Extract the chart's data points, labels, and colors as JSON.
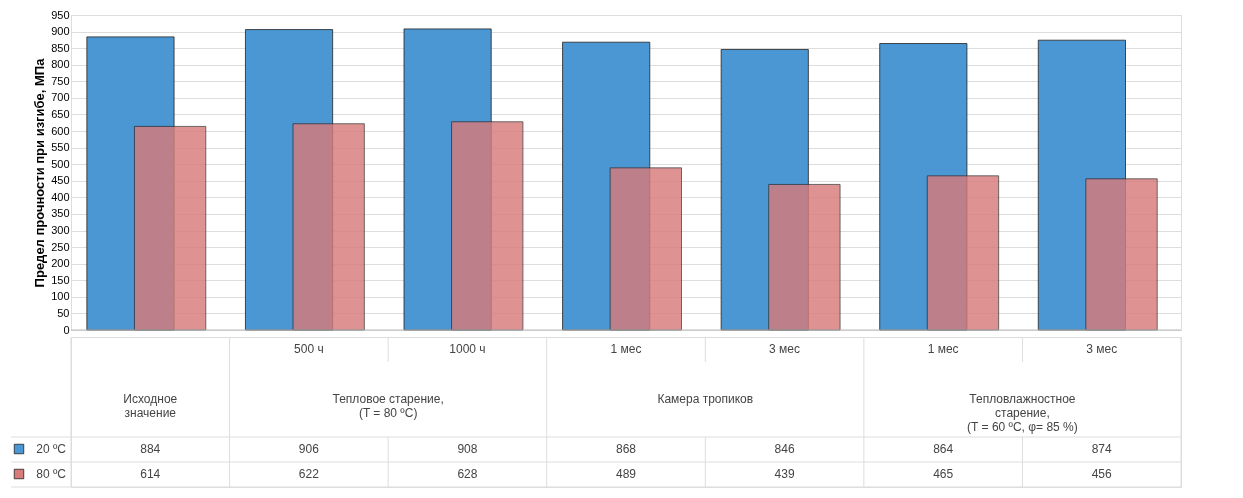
{
  "chart_data": {
    "type": "bar",
    "ylabel": "Предел прочности при изгибе, МПа",
    "categories": [
      null,
      "500 ч",
      "1000 ч",
      "1 мес",
      "3 мес",
      "1 мес",
      "3 мес"
    ],
    "series": [
      {
        "name": "20 ºC",
        "color": "#4a97d3",
        "values": [
          884,
          906,
          908,
          868,
          846,
          864,
          874
        ]
      },
      {
        "name": "80 ºC",
        "color": "#d77b7b",
        "values": [
          614,
          622,
          628,
          489,
          439,
          465,
          456
        ]
      }
    ],
    "annotations": [
      "Исходное\nзначение",
      "Тепловое старение,\n(T = 80 ºC)",
      "Камера тропиков",
      "Тепловлажностное\nстарение,\n(T = 60 ºC, φ= 85 %)"
    ],
    "ylim": [
      0,
      950
    ],
    "yticks": [
      0,
      50,
      100,
      150,
      200,
      250,
      300,
      350,
      400,
      450,
      500,
      550,
      600,
      650,
      700,
      750,
      800,
      850,
      900,
      950
    ],
    "grid": "y",
    "legend": "bottom",
    "data_labels": true
  }
}
